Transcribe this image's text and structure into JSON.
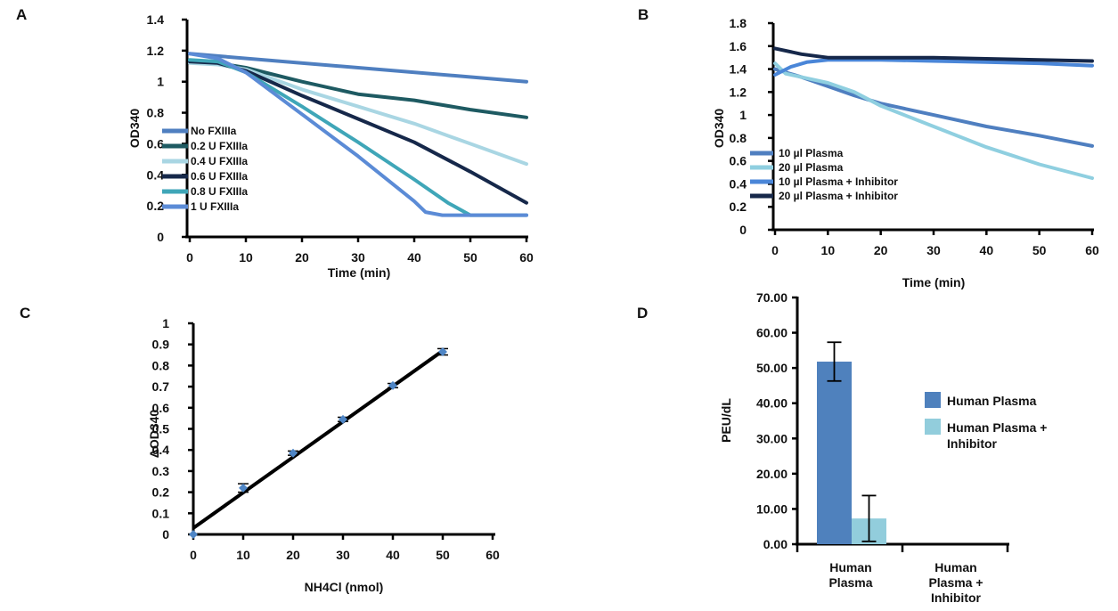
{
  "chart_data": [
    {
      "id": "A",
      "type": "line",
      "panel_label": "A",
      "xlabel": "Time (min)",
      "ylabel": "OD340",
      "xlim": [
        0,
        60
      ],
      "ylim": [
        0,
        1.4
      ],
      "xticks": [
        0,
        10,
        20,
        30,
        40,
        50,
        60
      ],
      "yticks": [
        "0",
        "0.2",
        "0.4",
        "0.6",
        "0.8",
        "1",
        "1.2",
        "1.4"
      ],
      "legend": "left-overlay",
      "series": [
        {
          "name": "No FXIIIa",
          "color": "#4f7fc0",
          "x": [
            0,
            60
          ],
          "y": [
            1.18,
            1.0
          ]
        },
        {
          "name": "0.2 U FXIIIa",
          "color": "#1e5a62",
          "x": [
            0,
            5,
            10,
            20,
            30,
            40,
            50,
            60
          ],
          "y": [
            1.13,
            1.12,
            1.09,
            1.0,
            0.92,
            0.88,
            0.82,
            0.77
          ]
        },
        {
          "name": "0.4 U FXIIIa",
          "color": "#a9d6e3",
          "x": [
            0,
            5,
            10,
            20,
            30,
            40,
            50,
            60
          ],
          "y": [
            1.12,
            1.11,
            1.08,
            0.95,
            0.84,
            0.73,
            0.6,
            0.47
          ]
        },
        {
          "name": "0.6 U FXIIIa",
          "color": "#16284a",
          "x": [
            0,
            5,
            10,
            20,
            30,
            40,
            50,
            60
          ],
          "y": [
            1.13,
            1.12,
            1.07,
            0.91,
            0.76,
            0.61,
            0.42,
            0.22
          ]
        },
        {
          "name": "0.8 U FXIIIa",
          "color": "#3fa6b8",
          "x": [
            0,
            5,
            10,
            20,
            30,
            40,
            46,
            50,
            60
          ],
          "y": [
            1.14,
            1.13,
            1.06,
            0.84,
            0.61,
            0.37,
            0.22,
            0.14,
            0.14
          ]
        },
        {
          "name": "1 U FXIIIa",
          "color": "#5b8bd6",
          "x": [
            0,
            5,
            10,
            20,
            30,
            40,
            42,
            45,
            60
          ],
          "y": [
            1.18,
            1.15,
            1.06,
            0.79,
            0.52,
            0.23,
            0.16,
            0.14,
            0.14
          ]
        }
      ]
    },
    {
      "id": "B",
      "type": "line",
      "panel_label": "B",
      "xlabel": "Time (min)",
      "ylabel": "OD340",
      "xlim": [
        0,
        60
      ],
      "ylim": [
        0,
        1.8
      ],
      "xticks": [
        0,
        10,
        20,
        30,
        40,
        50,
        60
      ],
      "yticks": [
        "0",
        "0.2",
        "0.4",
        "0.6",
        "0.8",
        "1",
        "1.2",
        "1.4",
        "1.6",
        "1.8"
      ],
      "legend": "left-inside",
      "series": [
        {
          "name": "10 µl Plasma",
          "color": "#4f7fc0",
          "x": [
            0,
            5,
            10,
            15,
            20,
            30,
            40,
            50,
            60
          ],
          "y": [
            1.4,
            1.33,
            1.25,
            1.17,
            1.1,
            1.0,
            0.9,
            0.82,
            0.73
          ]
        },
        {
          "name": "20 µl Plasma",
          "color": "#8fcfe0",
          "x": [
            0,
            2,
            5,
            10,
            15,
            20,
            30,
            40,
            50,
            60
          ],
          "y": [
            1.45,
            1.36,
            1.33,
            1.28,
            1.2,
            1.08,
            0.9,
            0.72,
            0.57,
            0.45
          ]
        },
        {
          "name": "10 µl Plasma + Inhibitor",
          "color": "#4a86d8",
          "x": [
            0,
            3,
            6,
            10,
            20,
            30,
            40,
            50,
            60
          ],
          "y": [
            1.35,
            1.42,
            1.46,
            1.48,
            1.48,
            1.47,
            1.46,
            1.45,
            1.43
          ]
        },
        {
          "name": "20 µl Plasma + Inhibitor",
          "color": "#16284a",
          "x": [
            0,
            5,
            10,
            20,
            30,
            40,
            50,
            60
          ],
          "y": [
            1.58,
            1.53,
            1.5,
            1.5,
            1.5,
            1.49,
            1.48,
            1.47
          ]
        }
      ]
    },
    {
      "id": "C",
      "type": "scatter",
      "panel_label": "C",
      "xlabel": "NH4Cl (nmol)",
      "ylabel": "ΔOD340",
      "xlim": [
        0,
        60
      ],
      "ylim": [
        0,
        1
      ],
      "xticks": [
        0,
        10,
        20,
        30,
        40,
        50,
        60
      ],
      "yticks": [
        "0",
        "0.1",
        "0.2",
        "0.3",
        "0.4",
        "0.5",
        "0.6",
        "0.7",
        "0.8",
        "0.9",
        "1"
      ],
      "series": [
        {
          "name": "",
          "color": "#4f86c6",
          "x": [
            0,
            10,
            20,
            30,
            40,
            50
          ],
          "y": [
            0.0,
            0.22,
            0.385,
            0.545,
            0.705,
            0.865
          ],
          "err": [
            0,
            0.02,
            0.01,
            0.01,
            0.01,
            0.015
          ]
        }
      ],
      "fit": {
        "x": [
          0,
          50
        ],
        "y": [
          0.03,
          0.87
        ],
        "color": "#000000"
      }
    },
    {
      "id": "D",
      "type": "bar",
      "panel_label": "D",
      "ylabel": "PEU/dL",
      "ylim": [
        0,
        70
      ],
      "yticks": [
        "0.00",
        "10.00",
        "20.00",
        "30.00",
        "40.00",
        "50.00",
        "60.00",
        "70.00"
      ],
      "categories": [
        "Human Plasma",
        "Human Plasma + Inhibitor"
      ],
      "legend": "right",
      "series": [
        {
          "name": "Human Plasma",
          "color": "#4f81bd",
          "value": 51.8,
          "err": 5.5
        },
        {
          "name": "Human Plasma + Inhibitor",
          "color": "#92cddc",
          "value": 7.3,
          "err": 6.5
        }
      ]
    }
  ]
}
